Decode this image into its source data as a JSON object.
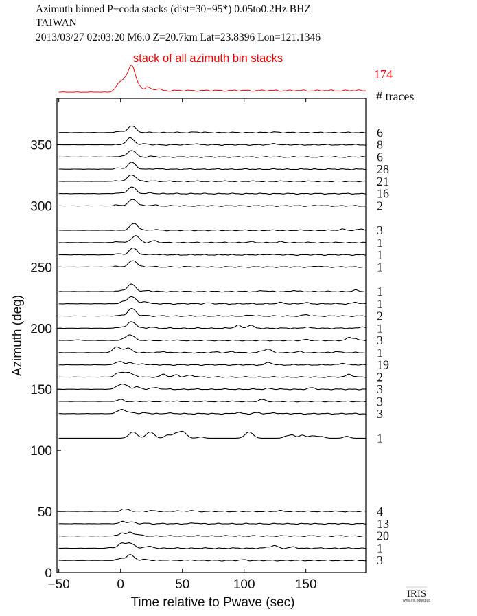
{
  "header": {
    "line1": "Azimuth binned P−coda stacks (dist=30−95*)  0.05to0.2Hz  BHZ",
    "line2": "TAIWAN",
    "line3": "2013/03/27  02:03:20  M6.0  Z=20.7km Lat=23.8396 Lon=121.1346"
  },
  "logo": {
    "text": "IRIS",
    "url_text": "www.iris.edu/spud"
  },
  "chart_data": {
    "type": "line",
    "xlabel": "Time relative to Pwave (sec)",
    "ylabel": "Azimuth (deg)",
    "xlim": [
      -51.5,
      198.5
    ],
    "ylim": [
      0,
      388
    ],
    "xticks": [
      -50,
      0,
      50,
      100,
      150
    ],
    "yticks": [
      0,
      50,
      100,
      150,
      200,
      250,
      300,
      350
    ],
    "grid": false,
    "colors": {
      "traces": "#000000",
      "stack": "#ff0000"
    },
    "stack": {
      "label": "stack of all azimuth bin stacks",
      "count": "174",
      "count_header": "# traces",
      "peaks": [
        [
          -3,
          3
        ],
        [
          2,
          8
        ],
        [
          9,
          20
        ],
        [
          16,
          3
        ],
        [
          22,
          2.5
        ],
        [
          30,
          1.2
        ]
      ]
    },
    "traces": [
      {
        "azimuth": 360,
        "count": "6",
        "peaks": [
          [
            -2,
            0.8
          ],
          [
            9,
            5.5
          ],
          [
            60,
            0.5
          ],
          [
            125,
            0.5
          ]
        ]
      },
      {
        "azimuth": 350,
        "count": "8",
        "peaks": [
          [
            8,
            5.5
          ],
          [
            20,
            0.8
          ],
          [
            60,
            1
          ],
          [
            125,
            1
          ]
        ]
      },
      {
        "azimuth": 340,
        "count": "6",
        "peaks": [
          [
            -2,
            0.6
          ],
          [
            9,
            5.5
          ],
          [
            25,
            0.5
          ]
        ]
      },
      {
        "azimuth": 330,
        "count": "28",
        "peaks": [
          [
            -2,
            1
          ],
          [
            9,
            5.5
          ],
          [
            27,
            0.4
          ]
        ]
      },
      {
        "azimuth": 320,
        "count": "21",
        "peaks": [
          [
            -2,
            0.6
          ],
          [
            9,
            5.5
          ],
          [
            25,
            0.4
          ]
        ]
      },
      {
        "azimuth": 310,
        "count": "16",
        "peaks": [
          [
            -2,
            0.4
          ],
          [
            9,
            5.5
          ],
          [
            25,
            0.6
          ]
        ]
      },
      {
        "azimuth": 300,
        "count": "2",
        "peaks": [
          [
            -2,
            0.6
          ],
          [
            10,
            5.5
          ],
          [
            27,
            0.7
          ],
          [
            160,
            0.3
          ]
        ]
      },
      {
        "azimuth": 280,
        "count": "3",
        "peaks": [
          [
            11,
            5.5
          ],
          [
            27,
            0.6
          ],
          [
            180,
            1
          ],
          [
            195,
            1
          ]
        ]
      },
      {
        "azimuth": 270,
        "count": "1",
        "peaks": [
          [
            -2,
            1
          ],
          [
            12,
            5.5
          ],
          [
            27,
            1.5
          ],
          [
            105,
            0.6
          ],
          [
            130,
            0.6
          ]
        ]
      },
      {
        "azimuth": 260,
        "count": "1",
        "peaks": [
          [
            -2,
            0.8
          ],
          [
            10,
            5.5
          ],
          [
            27,
            0.6
          ],
          [
            120,
            0.5
          ]
        ]
      },
      {
        "azimuth": 250,
        "count": "1",
        "peaks": [
          [
            -2,
            0.5
          ],
          [
            10,
            5.5
          ],
          [
            27,
            0.4
          ],
          [
            55,
            0.5
          ],
          [
            160,
            0.6
          ]
        ]
      },
      {
        "azimuth": 230,
        "count": "1",
        "peaks": [
          [
            1,
            0.8
          ],
          [
            9,
            6
          ],
          [
            22,
            0.8
          ],
          [
            115,
            0.8
          ],
          [
            140,
            0.8
          ],
          [
            190,
            1
          ]
        ]
      },
      {
        "azimuth": 220,
        "count": "1",
        "peaks": [
          [
            1,
            1.5
          ],
          [
            9,
            6
          ],
          [
            20,
            2
          ],
          [
            70,
            0.8
          ],
          [
            130,
            1
          ],
          [
            150,
            0.8
          ],
          [
            190,
            1.2
          ]
        ]
      },
      {
        "azimuth": 210,
        "count": "2",
        "peaks": [
          [
            0,
            0.5
          ],
          [
            9,
            6
          ],
          [
            20,
            0.5
          ],
          [
            105,
            0.6
          ],
          [
            150,
            1
          ]
        ]
      },
      {
        "azimuth": 200,
        "count": "1",
        "peaks": [
          [
            0,
            1
          ],
          [
            9,
            5.5
          ],
          [
            25,
            1
          ],
          [
            95,
            2.5
          ],
          [
            105,
            2.5
          ],
          [
            150,
            1
          ],
          [
            195,
            1.2
          ]
        ]
      },
      {
        "azimuth": 190,
        "count": "3",
        "peaks": [
          [
            -35,
            0.5
          ],
          [
            4,
            1
          ],
          [
            8,
            4.5
          ],
          [
            40,
            0.4
          ],
          [
            150,
            0.8
          ],
          [
            185,
            2
          ],
          [
            190,
            1.5
          ]
        ]
      },
      {
        "azimuth": 180,
        "count": "1",
        "peaks": [
          [
            -3,
            4.5
          ],
          [
            6,
            3.5
          ],
          [
            35,
            1
          ],
          [
            78,
            0.6
          ],
          [
            90,
            0.8
          ],
          [
            115,
            1.5
          ],
          [
            120,
            2.5
          ],
          [
            145,
            0.8
          ],
          [
            175,
            1
          ]
        ]
      },
      {
        "azimuth": 170,
        "count": "19",
        "peaks": [
          [
            -3,
            1.5
          ],
          [
            0,
            2
          ],
          [
            8,
            2
          ],
          [
            18,
            1
          ],
          [
            120,
            2
          ],
          [
            180,
            1.5
          ]
        ]
      },
      {
        "azimuth": 160,
        "count": "2",
        "peaks": [
          [
            -3,
            2
          ],
          [
            2,
            3.5
          ],
          [
            7,
            2.5
          ],
          [
            12,
            1
          ],
          [
            35,
            2.2
          ],
          [
            45,
            1.8
          ],
          [
            55,
            1.2
          ],
          [
            60,
            0.7
          ],
          [
            185,
            2.5
          ]
        ]
      },
      {
        "azimuth": 150,
        "count": "3",
        "peaks": [
          [
            0,
            4
          ],
          [
            5,
            2
          ],
          [
            13,
            2
          ],
          [
            25,
            1
          ],
          [
            30,
            1
          ],
          [
            120,
            0.8
          ],
          [
            155,
            1.2
          ]
        ]
      },
      {
        "azimuth": 140,
        "count": "3",
        "peaks": [
          [
            0,
            1.5
          ],
          [
            40,
            0.3
          ],
          [
            115,
            1.5
          ]
        ]
      },
      {
        "azimuth": 130,
        "count": "3",
        "peaks": [
          [
            1,
            3.5
          ],
          [
            10,
            1
          ],
          [
            20,
            0.6
          ],
          [
            38,
            0.5
          ],
          [
            95,
            0.8
          ],
          [
            110,
            0.8
          ],
          [
            125,
            0.7
          ]
        ]
      },
      {
        "azimuth": 110,
        "count": "1",
        "peaks": [
          [
            10,
            5
          ],
          [
            24,
            5
          ],
          [
            38,
            2.5
          ],
          [
            44,
            3
          ],
          [
            50,
            5.5
          ],
          [
            65,
            1
          ],
          [
            104,
            5
          ],
          [
            134,
            1.5
          ],
          [
            139,
            2.5
          ],
          [
            147,
            2.5
          ],
          [
            154,
            1.5
          ],
          [
            158,
            1.2
          ],
          [
            163,
            1.2
          ],
          [
            183,
            1.5
          ]
        ]
      },
      {
        "azimuth": 50,
        "count": "4",
        "peaks": [
          [
            2,
            1.5
          ],
          [
            6,
            1
          ],
          [
            18,
            0.3
          ],
          [
            25,
            0.6
          ],
          [
            45,
            0.6
          ],
          [
            57,
            0.6
          ],
          [
            130,
            0.5
          ]
        ]
      },
      {
        "azimuth": 40,
        "count": "13",
        "peaks": [
          [
            2,
            2
          ],
          [
            9,
            1.3
          ],
          [
            20,
            0.4
          ],
          [
            60,
            0.5
          ]
        ]
      },
      {
        "azimuth": 30,
        "count": "20",
        "peaks": [
          [
            1,
            2.5
          ],
          [
            8,
            3
          ],
          [
            14,
            1
          ]
        ]
      },
      {
        "azimuth": 20,
        "count": "1",
        "peaks": [
          [
            -8,
            0.5
          ],
          [
            0,
            3
          ],
          [
            6,
            4
          ],
          [
            10,
            1.5
          ],
          [
            20,
            1
          ],
          [
            25,
            1
          ],
          [
            120,
            1
          ],
          [
            125,
            2
          ],
          [
            140,
            1
          ]
        ]
      },
      {
        "azimuth": 10,
        "count": "3",
        "peaks": [
          [
            0,
            1.5
          ],
          [
            8,
            4.5
          ],
          [
            20,
            0.8
          ],
          [
            37,
            0.5
          ],
          [
            58,
            0.5
          ],
          [
            100,
            0.5
          ]
        ]
      }
    ]
  }
}
